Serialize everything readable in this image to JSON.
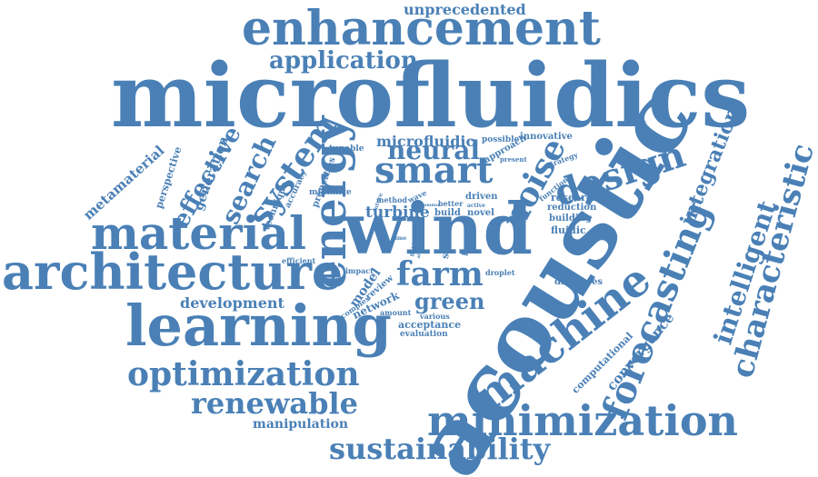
{
  "colors": {
    "word": "#4a80b6",
    "background": "#ffffff"
  },
  "words": [
    "unprecedented",
    "enhancement",
    "application",
    "microfluidics",
    "acoustic",
    "wind",
    "energy",
    "learning",
    "architecture",
    "material",
    "optimization",
    "renewable",
    "minimization",
    "sustainability",
    "machine",
    "forecasting",
    "characteristic",
    "intelligent",
    "integration",
    "design",
    "smart",
    "noise",
    "neural",
    "farm",
    "green",
    "system",
    "search",
    "effective",
    "generation",
    "perspective",
    "metamaterial",
    "technique",
    "accuracy",
    "properties",
    "tunable",
    "microfluidic",
    "possible",
    "innovative",
    "approach",
    "present",
    "strategy",
    "function",
    "minimize",
    "method",
    "wave",
    "better",
    "driven",
    "build",
    "novel",
    "turbine",
    "research",
    "reduction",
    "building",
    "fluidic",
    "stream",
    "layout",
    "review",
    "model",
    "network",
    "development",
    "efficient",
    "impact",
    "complex",
    "amount",
    "various",
    "acceptance",
    "evaluation",
    "discusses",
    "droplet",
    "convergence",
    "computational",
    "manipulation",
    "active",
    "recent",
    "phase",
    "time",
    "ammo",
    "fluid",
    "area",
    "future"
  ]
}
